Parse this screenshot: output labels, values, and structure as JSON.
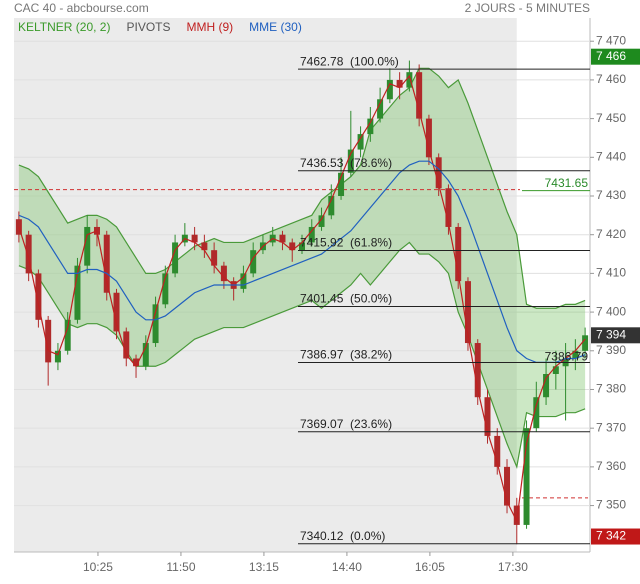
{
  "chart_data": {
    "type": "candlestick",
    "title": "CAC 40 - abcbourse.com",
    "subtitle": "2 JOURS - 5 MINUTES",
    "legend": [
      {
        "name": "KELTNER (20, 2)",
        "color": "#3a9a2a"
      },
      {
        "name": "PIVOTS",
        "color": "#555555"
      },
      {
        "name": "MMH (9)",
        "color": "#c02020"
      },
      {
        "name": "MME (30)",
        "color": "#2060c0"
      }
    ],
    "xlim": [
      0,
      59
    ],
    "xticks": [
      {
        "value": 8.6,
        "label": "10:25"
      },
      {
        "value": 17.1,
        "label": "11:50"
      },
      {
        "value": 25.6,
        "label": "13:15"
      },
      {
        "value": 34.1,
        "label": "14:40"
      },
      {
        "value": 42.6,
        "label": "16:05"
      },
      {
        "value": 51.1,
        "label": "17:30"
      }
    ],
    "ylim": [
      7338,
      7476
    ],
    "yticks": [
      {
        "value": 7350,
        "label": "7 350"
      },
      {
        "value": 7360,
        "label": "7 360"
      },
      {
        "value": 7370,
        "label": "7 370"
      },
      {
        "value": 7380,
        "label": "7 380"
      },
      {
        "value": 7390,
        "label": "7 390"
      },
      {
        "value": 7400,
        "label": "7 400"
      },
      {
        "value": 7410,
        "label": "7 410"
      },
      {
        "value": 7420,
        "label": "7 420"
      },
      {
        "value": 7430,
        "label": "7 430"
      },
      {
        "value": 7440,
        "label": "7 440"
      },
      {
        "value": 7450,
        "label": "7 450"
      },
      {
        "value": 7460,
        "label": "7 460"
      },
      {
        "value": 7470,
        "label": "7 470"
      }
    ],
    "grid": true,
    "up_color": "#2e8b2e",
    "down_color": "#b02a2a",
    "candles": [
      [
        7424,
        7426,
        7418,
        7420
      ],
      [
        7420,
        7421,
        7408,
        7410
      ],
      [
        7410,
        7411,
        7396,
        7398
      ],
      [
        7398,
        7399,
        7381,
        7387
      ],
      [
        7387,
        7392,
        7385,
        7390
      ],
      [
        7390,
        7400,
        7389,
        7398
      ],
      [
        7398,
        7414,
        7397,
        7412
      ],
      [
        7412,
        7425,
        7410,
        7422
      ],
      [
        7422,
        7424,
        7417,
        7420
      ],
      [
        7420,
        7421,
        7403,
        7405
      ],
      [
        7405,
        7406,
        7393,
        7395
      ],
      [
        7395,
        7396,
        7386,
        7388
      ],
      [
        7388,
        7389,
        7383,
        7386
      ],
      [
        7386,
        7394,
        7385,
        7392
      ],
      [
        7392,
        7404,
        7391,
        7402
      ],
      [
        7402,
        7412,
        7401,
        7410
      ],
      [
        7410,
        7420,
        7409,
        7418
      ],
      [
        7418,
        7423,
        7417,
        7420
      ],
      [
        7420,
        7422,
        7416,
        7418
      ],
      [
        7418,
        7420,
        7414,
        7416
      ],
      [
        7416,
        7418,
        7410,
        7412
      ],
      [
        7412,
        7413,
        7406,
        7408
      ],
      [
        7408,
        7409,
        7403,
        7406
      ],
      [
        7406,
        7412,
        7405,
        7410
      ],
      [
        7410,
        7418,
        7409,
        7416
      ],
      [
        7416,
        7420,
        7415,
        7418
      ],
      [
        7418,
        7422,
        7417,
        7420
      ],
      [
        7420,
        7421,
        7416,
        7418
      ],
      [
        7418,
        7419,
        7413,
        7416
      ],
      [
        7416,
        7420,
        7415,
        7418
      ],
      [
        7418,
        7424,
        7417,
        7422
      ],
      [
        7422,
        7427,
        7421,
        7425
      ],
      [
        7425,
        7433,
        7424,
        7430
      ],
      [
        7430,
        7440,
        7429,
        7436
      ],
      [
        7436,
        7452,
        7435,
        7442
      ],
      [
        7442,
        7448,
        7440,
        7446
      ],
      [
        7446,
        7453,
        7444,
        7450
      ],
      [
        7450,
        7458,
        7449,
        7455
      ],
      [
        7455,
        7463,
        7454,
        7460
      ],
      [
        7460,
        7462,
        7455,
        7458
      ],
      [
        7458,
        7465,
        7457,
        7462
      ],
      [
        7462,
        7464,
        7448,
        7450
      ],
      [
        7450,
        7451,
        7438,
        7440
      ],
      [
        7440,
        7441,
        7430,
        7432
      ],
      [
        7432,
        7433,
        7420,
        7422
      ],
      [
        7422,
        7423,
        7406,
        7408
      ],
      [
        7408,
        7409,
        7390,
        7392
      ],
      [
        7392,
        7393,
        7376,
        7378
      ],
      [
        7378,
        7380,
        7366,
        7368
      ],
      [
        7368,
        7370,
        7358,
        7360
      ],
      [
        7360,
        7362,
        7348,
        7350
      ],
      [
        7350,
        7352,
        7340,
        7345
      ],
      [
        7345,
        7372,
        7344,
        7370
      ],
      [
        7370,
        7382,
        7369,
        7378
      ],
      [
        7378,
        7388,
        7376,
        7384
      ],
      [
        7384,
        7390,
        7380,
        7386
      ],
      [
        7386,
        7392,
        7372,
        7388
      ],
      [
        7388,
        7393,
        7385,
        7390
      ],
      [
        7390,
        7396,
        7388,
        7394
      ]
    ],
    "keltner_upper": [
      7438,
      7437,
      7435,
      7431,
      7427,
      7423,
      7424,
      7425,
      7425,
      7424,
      7422,
      7418,
      7414,
      7410,
      7410,
      7411,
      7413,
      7415,
      7417,
      7418,
      7419,
      7418,
      7418,
      7418,
      7419,
      7420,
      7421,
      7422,
      7423,
      7424,
      7425,
      7429,
      7431,
      7433,
      7435,
      7438,
      7447,
      7450,
      7453,
      7456,
      7458,
      7463,
      7463,
      7461,
      7458,
      7460,
      7454,
      7447,
      7440,
      7433,
      7426,
      7420,
      7402,
      7401,
      7401,
      7401,
      7402,
      7402,
      7403
    ],
    "keltner_lower": [
      7412,
      7411,
      7409,
      7405,
      7401,
      7397,
      7396,
      7397,
      7397,
      7396,
      7394,
      7390,
      7386,
      7386,
      7386,
      7387,
      7389,
      7391,
      7393,
      7394,
      7395,
      7396,
      7396,
      7396,
      7397,
      7398,
      7399,
      7400,
      7401,
      7402,
      7403,
      7401,
      7403,
      7405,
      7407,
      7410,
      7407,
      7410,
      7413,
      7416,
      7418,
      7415,
      7415,
      7413,
      7410,
      7400,
      7394,
      7387,
      7380,
      7373,
      7366,
      7360,
      7374,
      7373,
      7373,
      7373,
      7374,
      7374,
      7375
    ],
    "mmh": [
      7422,
      7414,
      7402,
      7390,
      7389,
      7396,
      7410,
      7420,
      7421,
      7408,
      7397,
      7389,
      7386,
      7391,
      7400,
      7409,
      7416,
      7419,
      7418,
      7416,
      7412,
      7409,
      7407,
      7409,
      7414,
      7417,
      7419,
      7418,
      7416,
      7418,
      7421,
      7424,
      7429,
      7435,
      7441,
      7445,
      7449,
      7454,
      7459,
      7458,
      7461,
      7452,
      7442,
      7433,
      7423,
      7410,
      7394,
      7380,
      7369,
      7361,
      7351,
      7346,
      7366,
      7376,
      7383,
      7386,
      7388,
      7390,
      7393
    ],
    "mme": [
      7425,
      7424,
      7422,
      7418,
      7414,
      7410,
      7410,
      7411,
      7411,
      7410,
      7408,
      7404,
      7400,
      7398,
      7398,
      7399,
      7401,
      7403,
      7405,
      7406,
      7407,
      7407,
      7407,
      7407,
      7408,
      7409,
      7410,
      7411,
      7412,
      7413,
      7414,
      7415,
      7417,
      7419,
      7421,
      7424,
      7427,
      7430,
      7433,
      7436,
      7438,
      7439,
      7439,
      7437,
      7434,
      7430,
      7424,
      7417,
      7410,
      7403,
      7396,
      7390,
      7388,
      7387,
      7387,
      7387,
      7388,
      7388,
      7389
    ],
    "fibonacci": [
      {
        "value": 7462.78,
        "label": "7462.78  (100.0%)"
      },
      {
        "value": 7436.53,
        "label": "7436.53  (78.6%)"
      },
      {
        "value": 7415.92,
        "label": "7415.92  (61.8%)"
      },
      {
        "value": 7401.45,
        "label": "7401.45  (50.0%)"
      },
      {
        "value": 7386.97,
        "label": "7386.97  (38.2%)"
      },
      {
        "value": 7369.07,
        "label": "7369.07  (23.6%)"
      },
      {
        "value": 7340.12,
        "label": "7340.12  (0.0%)"
      }
    ],
    "pivot": {
      "value": 7431.65,
      "label": "7431.65"
    },
    "support": 7352,
    "mme_label": {
      "value": 7386.79,
      "label": "7386.79"
    },
    "price_tags": [
      {
        "value": 7466,
        "label": "7 466",
        "color": "#1e8a1e"
      },
      {
        "value": 7394,
        "label": "7 394",
        "color": "#333333"
      },
      {
        "value": 7342,
        "label": "7 342",
        "color": "#c01818"
      }
    ]
  }
}
